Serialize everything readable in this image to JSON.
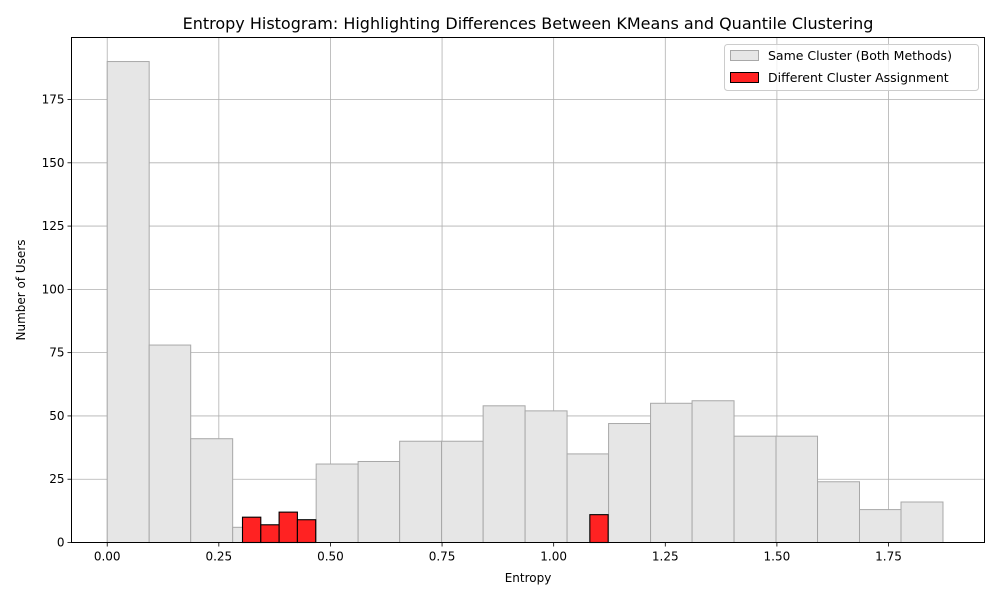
{
  "chart_data": {
    "type": "bar",
    "title": "Entropy Histogram: Highlighting Differences Between KMeans and Quantile Clustering",
    "xlabel": "Entropy",
    "ylabel": "Number of Users",
    "xlim": [
      -0.08,
      1.965
    ],
    "ylim": [
      0,
      199.5
    ],
    "xticks": [
      0.0,
      0.25,
      0.5,
      0.75,
      1.0,
      1.25,
      1.5,
      1.75
    ],
    "xtick_labels": [
      "0.00",
      "0.25",
      "0.50",
      "0.75",
      "1.00",
      "1.25",
      "1.50",
      "1.75"
    ],
    "yticks": [
      0,
      25,
      50,
      75,
      100,
      125,
      150,
      175
    ],
    "ytick_labels": [
      "0",
      "25",
      "50",
      "75",
      "100",
      "125",
      "150",
      "175"
    ],
    "grid": true,
    "legend_position": "top-right",
    "series": [
      {
        "name": "Same Cluster (Both Methods)",
        "color": "#e6e6e6",
        "edge_color": "#a8a8a8",
        "bins": [
          {
            "x0": 0.0,
            "x1": 0.094,
            "value": 190
          },
          {
            "x0": 0.094,
            "x1": 0.187,
            "value": 78
          },
          {
            "x0": 0.187,
            "x1": 0.281,
            "value": 41
          },
          {
            "x0": 0.281,
            "x1": 0.374,
            "value": 6
          },
          {
            "x0": 0.374,
            "x1": 0.468,
            "value": 0
          },
          {
            "x0": 0.468,
            "x1": 0.562,
            "value": 31
          },
          {
            "x0": 0.562,
            "x1": 0.655,
            "value": 32
          },
          {
            "x0": 0.655,
            "x1": 0.749,
            "value": 40
          },
          {
            "x0": 0.749,
            "x1": 0.842,
            "value": 40
          },
          {
            "x0": 0.842,
            "x1": 0.936,
            "value": 54
          },
          {
            "x0": 0.936,
            "x1": 1.03,
            "value": 52
          },
          {
            "x0": 1.03,
            "x1": 1.123,
            "value": 35
          },
          {
            "x0": 1.123,
            "x1": 1.217,
            "value": 47
          },
          {
            "x0": 1.217,
            "x1": 1.31,
            "value": 55
          },
          {
            "x0": 1.31,
            "x1": 1.404,
            "value": 56
          },
          {
            "x0": 1.404,
            "x1": 1.498,
            "value": 42
          },
          {
            "x0": 1.498,
            "x1": 1.591,
            "value": 42
          },
          {
            "x0": 1.591,
            "x1": 1.685,
            "value": 24
          },
          {
            "x0": 1.685,
            "x1": 1.778,
            "value": 13
          },
          {
            "x0": 1.778,
            "x1": 1.872,
            "value": 16
          }
        ]
      },
      {
        "name": "Different Cluster Assignment",
        "color": "#ff2222",
        "edge_color": "#000000",
        "bins": [
          {
            "x0": 0.303,
            "x1": 0.344,
            "value": 10
          },
          {
            "x0": 0.344,
            "x1": 0.385,
            "value": 7
          },
          {
            "x0": 0.385,
            "x1": 0.426,
            "value": 12
          },
          {
            "x0": 0.426,
            "x1": 0.467,
            "value": 9
          },
          {
            "x0": 1.081,
            "x1": 1.122,
            "value": 11
          }
        ]
      }
    ]
  }
}
